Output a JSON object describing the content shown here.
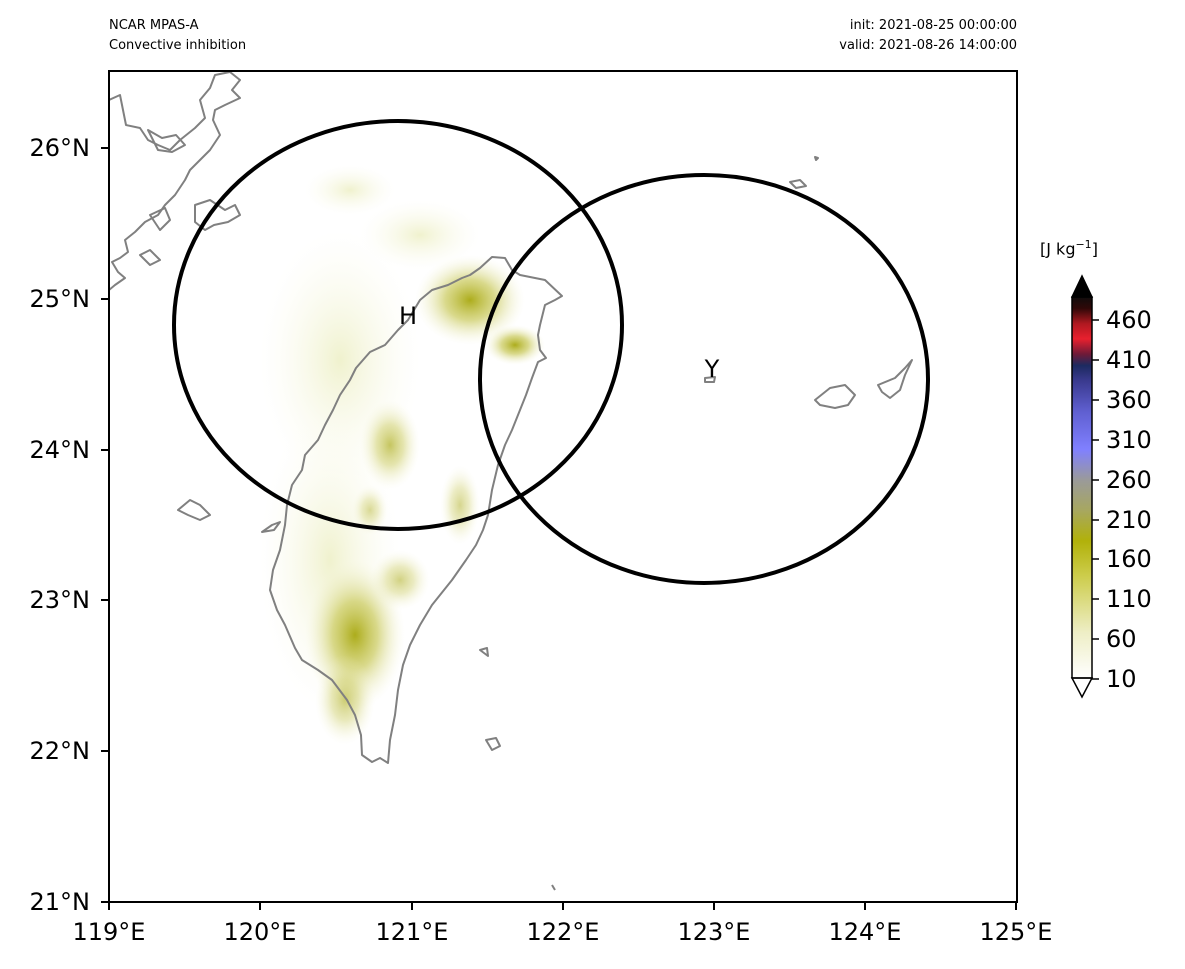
{
  "header": {
    "model": "NCAR MPAS-A",
    "field": "Convective inhibition",
    "init": "init: 2021-08-25 00:00:00",
    "valid": "valid: 2021-08-26 14:00:00"
  },
  "axes": {
    "y_ticks": [
      "26°N",
      "25°N",
      "24°N",
      "23°N",
      "22°N",
      "21°N"
    ],
    "x_ticks": [
      "119°E",
      "120°E",
      "121°E",
      "122°E",
      "123°E",
      "124°E",
      "125°E"
    ],
    "lon_range": [
      119,
      125
    ],
    "lat_range": [
      21,
      26.5
    ]
  },
  "markers": [
    {
      "label": "H",
      "center_lon": 120.93,
      "center_lat": 24.83
    },
    {
      "label": "Y",
      "center_lon": 122.95,
      "center_lat": 24.47
    }
  ],
  "colorbar": {
    "unit_base": "[J kg",
    "unit_exp": "−1",
    "unit_close": "]",
    "ticks": [
      "460",
      "410",
      "360",
      "310",
      "260",
      "210",
      "160",
      "110",
      "60",
      "10"
    ],
    "extend": "both",
    "colors": {
      "low": "#ffffff",
      "mid1": "#e6e6a6",
      "mid2": "#b5b50b",
      "mid3": "#9a9a80",
      "mid4": "#7b7bfd",
      "mid5": "#30307a",
      "mid6": "#ef2030",
      "high": "#101010"
    }
  },
  "colors": {
    "coastline": "#808080",
    "range_circle": "#000000",
    "shading": "#b5b50b"
  }
}
